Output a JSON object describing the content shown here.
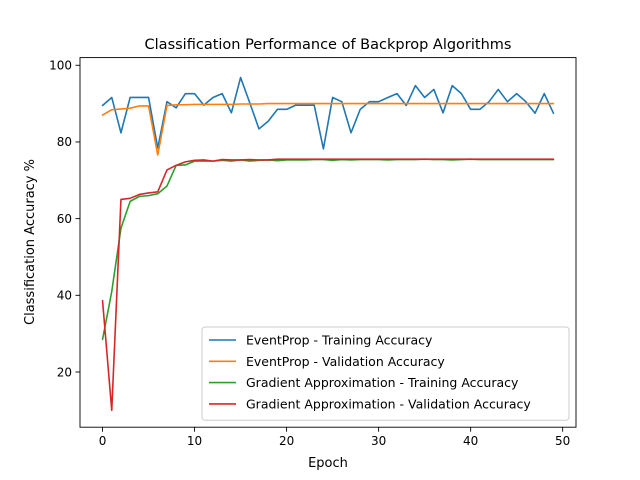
{
  "chart_data": {
    "type": "line",
    "title": "Classification Performance of Backprop Algorithms",
    "xlabel": "Epoch",
    "ylabel": "Classification Accuracy %",
    "xlim": [
      -2.45,
      51.45
    ],
    "ylim": [
      5.6,
      102.0
    ],
    "xticks": [
      0,
      10,
      20,
      30,
      40,
      50
    ],
    "yticks": [
      20,
      40,
      60,
      80,
      100
    ],
    "grid": false,
    "legend_position": "lower-right",
    "x": [
      0,
      1,
      2,
      3,
      4,
      5,
      6,
      7,
      8,
      9,
      10,
      11,
      12,
      13,
      14,
      15,
      16,
      17,
      18,
      19,
      20,
      21,
      22,
      23,
      24,
      25,
      26,
      27,
      28,
      29,
      30,
      31,
      32,
      33,
      34,
      35,
      36,
      37,
      38,
      39,
      40,
      41,
      42,
      43,
      44,
      45,
      46,
      47,
      48,
      49
    ],
    "series": [
      {
        "name": "EventProp - Training Accuracy",
        "color": "#1f77b4",
        "values": [
          89.5,
          91.6,
          82.4,
          91.6,
          91.6,
          91.6,
          78.4,
          90.5,
          88.9,
          92.6,
          92.6,
          89.6,
          91.6,
          92.6,
          87.6,
          96.8,
          90.2,
          83.4,
          85.4,
          88.5,
          88.5,
          89.6,
          89.6,
          89.6,
          78.2,
          91.6,
          90.5,
          82.4,
          88.5,
          90.5,
          90.5,
          91.6,
          92.6,
          89.5,
          94.7,
          91.6,
          93.7,
          87.6,
          94.7,
          92.6,
          88.5,
          88.5,
          90.5,
          93.7,
          90.5,
          92.6,
          90.5,
          87.5,
          92.6,
          87.5
        ]
      },
      {
        "name": "EventProp - Validation Accuracy",
        "color": "#ff7f0e",
        "values": [
          87.0,
          88.4,
          88.6,
          88.8,
          89.4,
          89.4,
          76.6,
          89.5,
          89.7,
          89.7,
          89.8,
          89.8,
          89.8,
          89.8,
          89.8,
          89.9,
          89.9,
          89.9,
          90.0,
          90.0,
          90.0,
          90.0,
          90.0,
          90.0,
          90.0,
          90.0,
          90.0,
          90.0,
          90.0,
          90.0,
          90.0,
          90.0,
          90.0,
          90.0,
          90.0,
          90.0,
          90.0,
          90.0,
          90.0,
          90.0,
          90.0,
          90.0,
          90.0,
          90.0,
          90.0,
          90.0,
          90.0,
          90.0,
          90.0,
          90.0
        ]
      },
      {
        "name": "Gradient Approximation - Training Accuracy",
        "color": "#2ca02c",
        "values": [
          28.5,
          41.0,
          57.5,
          64.5,
          65.8,
          66.0,
          66.5,
          68.5,
          73.9,
          74.0,
          75.0,
          75.0,
          75.0,
          75.2,
          75.0,
          75.3,
          75.0,
          75.2,
          75.3,
          75.1,
          75.3,
          75.3,
          75.3,
          75.4,
          75.4,
          75.2,
          75.4,
          75.3,
          75.4,
          75.4,
          75.4,
          75.3,
          75.4,
          75.4,
          75.4,
          75.5,
          75.4,
          75.4,
          75.3,
          75.4,
          75.5,
          75.4,
          75.4,
          75.4,
          75.4,
          75.4,
          75.4,
          75.4,
          75.4,
          75.4
        ]
      },
      {
        "name": "Gradient Approximation - Validation Accuracy",
        "color": "#d62728",
        "values": [
          38.6,
          10.0,
          65.0,
          65.3,
          66.3,
          66.7,
          67.0,
          72.7,
          73.9,
          74.8,
          75.2,
          75.3,
          75.0,
          75.4,
          75.3,
          75.3,
          75.4,
          75.3,
          75.3,
          75.5,
          75.5,
          75.5,
          75.5,
          75.5,
          75.5,
          75.5,
          75.5,
          75.5,
          75.5,
          75.5,
          75.5,
          75.5,
          75.5,
          75.5,
          75.5,
          75.5,
          75.5,
          75.5,
          75.5,
          75.5,
          75.5,
          75.5,
          75.5,
          75.5,
          75.5,
          75.5,
          75.5,
          75.5,
          75.5,
          75.5
        ]
      }
    ]
  }
}
